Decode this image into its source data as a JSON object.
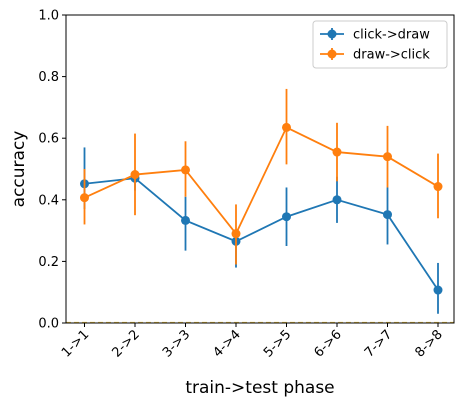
{
  "chart_data": {
    "type": "line",
    "title": "",
    "xlabel": "train->test phase",
    "ylabel": "accuracy",
    "categories": [
      "1->1",
      "2->2",
      "3->3",
      "4->4",
      "5->5",
      "6->6",
      "7->7",
      "8->8"
    ],
    "ylim": [
      0,
      1
    ],
    "yticks": [
      "0.0",
      "0.2",
      "0.4",
      "0.6",
      "0.8",
      "1.0"
    ],
    "grid": false,
    "legend_position": "top-right",
    "reference_line": {
      "y": 0,
      "color": "#e8c24a",
      "style": "dashed"
    },
    "series": [
      {
        "name": "click->draw",
        "color": "#1f77b4",
        "values": [
          0.452,
          0.47,
          0.333,
          0.265,
          0.345,
          0.4,
          0.352,
          0.107
        ],
        "err_low": [
          0.37,
          0.43,
          0.235,
          0.18,
          0.25,
          0.325,
          0.255,
          0.03
        ],
        "err_high": [
          0.57,
          0.475,
          0.41,
          0.275,
          0.44,
          0.475,
          0.44,
          0.195
        ]
      },
      {
        "name": "draw->click",
        "color": "#ff7f0e",
        "values": [
          0.407,
          0.482,
          0.497,
          0.29,
          0.635,
          0.555,
          0.54,
          0.443
        ],
        "err_low": [
          0.32,
          0.35,
          0.41,
          0.19,
          0.515,
          0.46,
          0.44,
          0.34
        ],
        "err_high": [
          0.5,
          0.615,
          0.59,
          0.385,
          0.76,
          0.65,
          0.64,
          0.55
        ]
      }
    ]
  }
}
